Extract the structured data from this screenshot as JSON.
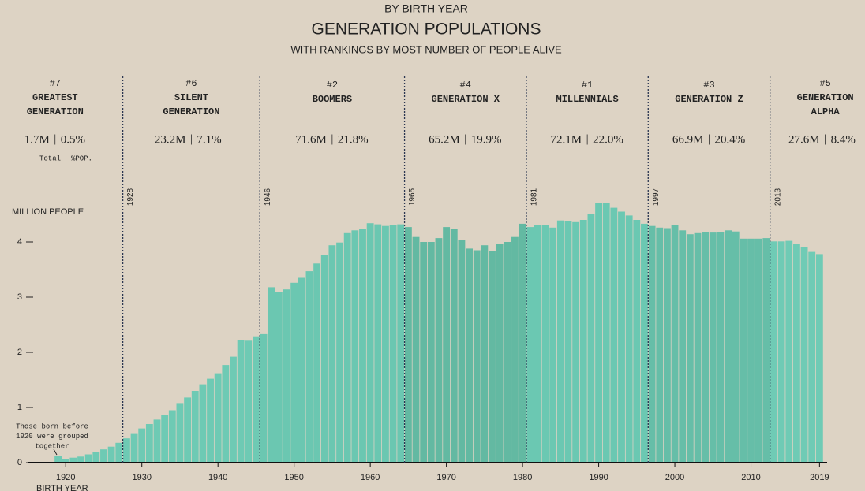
{
  "chart_data": {
    "type": "bar",
    "kicker": "BY BIRTH YEAR",
    "title": "GENERATION POPULATIONS",
    "subtitle": "WITH RANKINGS BY MOST NUMBER OF PEOPLE ALIVE",
    "ylabel": "MILLION PEOPLE",
    "xlabel": "BIRTH YEAR",
    "total_label": "Total",
    "pct_label": "%POP.",
    "annotation_lines": [
      "Those born before",
      "1920 were grouped",
      "together"
    ],
    "generations": [
      {
        "rank": "#7",
        "name_lines": [
          "GREATEST",
          "GENERATION"
        ],
        "total": "1.7M",
        "pct": "0.5%",
        "color": "#6ecab4"
      },
      {
        "rank": "#6",
        "name_lines": [
          "SILENT",
          "GENERATION"
        ],
        "total": "23.2M",
        "pct": "7.1%",
        "start_year": 1928,
        "color": "#6ecab4"
      },
      {
        "rank": "#2",
        "name_lines": [
          "BOOMERS"
        ],
        "total": "71.6M",
        "pct": "21.8%",
        "start_year": 1946,
        "color": "#6bc7b1"
      },
      {
        "rank": "#4",
        "name_lines": [
          "GENERATION X"
        ],
        "total": "65.2M",
        "pct": "19.9%",
        "start_year": 1965,
        "color": "#63b9a2"
      },
      {
        "rank": "#1",
        "name_lines": [
          "MILLENNIALS"
        ],
        "total": "72.1M",
        "pct": "22.0%",
        "start_year": 1981,
        "color": "#6bc8b2"
      },
      {
        "rank": "#3",
        "name_lines": [
          "GENERATION Z"
        ],
        "total": "66.9M",
        "pct": "20.4%",
        "start_year": 1997,
        "color": "#66bea8"
      },
      {
        "rank": "#5",
        "name_lines": [
          "GENERATION",
          "ALPHA"
        ],
        "total": "27.6M",
        "pct": "8.4%",
        "start_year": 2013,
        "color": "#6fcbb5"
      }
    ],
    "x": [
      1919,
      1920,
      1921,
      1922,
      1923,
      1924,
      1925,
      1926,
      1927,
      1928,
      1929,
      1930,
      1931,
      1932,
      1933,
      1934,
      1935,
      1936,
      1937,
      1938,
      1939,
      1940,
      1941,
      1942,
      1943,
      1944,
      1945,
      1946,
      1947,
      1948,
      1949,
      1950,
      1951,
      1952,
      1953,
      1954,
      1955,
      1956,
      1957,
      1958,
      1959,
      1960,
      1961,
      1962,
      1963,
      1964,
      1965,
      1966,
      1967,
      1968,
      1969,
      1970,
      1971,
      1972,
      1973,
      1974,
      1975,
      1976,
      1977,
      1978,
      1979,
      1980,
      1981,
      1982,
      1983,
      1984,
      1985,
      1986,
      1987,
      1988,
      1989,
      1990,
      1991,
      1992,
      1993,
      1994,
      1995,
      1996,
      1997,
      1998,
      1999,
      2000,
      2001,
      2002,
      2003,
      2004,
      2005,
      2006,
      2007,
      2008,
      2009,
      2010,
      2011,
      2012,
      2013,
      2014,
      2015,
      2016,
      2017,
      2018,
      2019
    ],
    "values": [
      0.12,
      0.07,
      0.09,
      0.11,
      0.15,
      0.19,
      0.24,
      0.29,
      0.36,
      0.44,
      0.52,
      0.62,
      0.7,
      0.78,
      0.87,
      0.95,
      1.08,
      1.18,
      1.3,
      1.42,
      1.52,
      1.62,
      1.77,
      1.92,
      2.22,
      2.21,
      2.29,
      2.33,
      3.18,
      3.1,
      3.14,
      3.26,
      3.35,
      3.47,
      3.61,
      3.77,
      3.94,
      3.99,
      4.16,
      4.21,
      4.24,
      4.34,
      4.32,
      4.29,
      4.31,
      4.32,
      4.27,
      4.09,
      4.0,
      4.0,
      4.07,
      4.27,
      4.24,
      4.04,
      3.88,
      3.85,
      3.94,
      3.84,
      3.96,
      4.0,
      4.09,
      4.33,
      4.27,
      4.3,
      4.31,
      4.26,
      4.39,
      4.38,
      4.36,
      4.4,
      4.5,
      4.7,
      4.71,
      4.62,
      4.55,
      4.48,
      4.4,
      4.33,
      4.29,
      4.26,
      4.25,
      4.3,
      4.21,
      4.14,
      4.16,
      4.18,
      4.17,
      4.18,
      4.21,
      4.19,
      4.06,
      4.06,
      4.06,
      4.07,
      4.01,
      4.01,
      4.02,
      3.97,
      3.9,
      3.82,
      3.78
    ],
    "xlim": [
      1915,
      2020
    ],
    "xticks": [
      1920,
      1930,
      1940,
      1950,
      1960,
      1970,
      1980,
      1990,
      2000,
      2010,
      2019
    ],
    "ylim": [
      0,
      5
    ],
    "yticks": [
      0,
      1,
      2,
      3,
      4
    ]
  }
}
